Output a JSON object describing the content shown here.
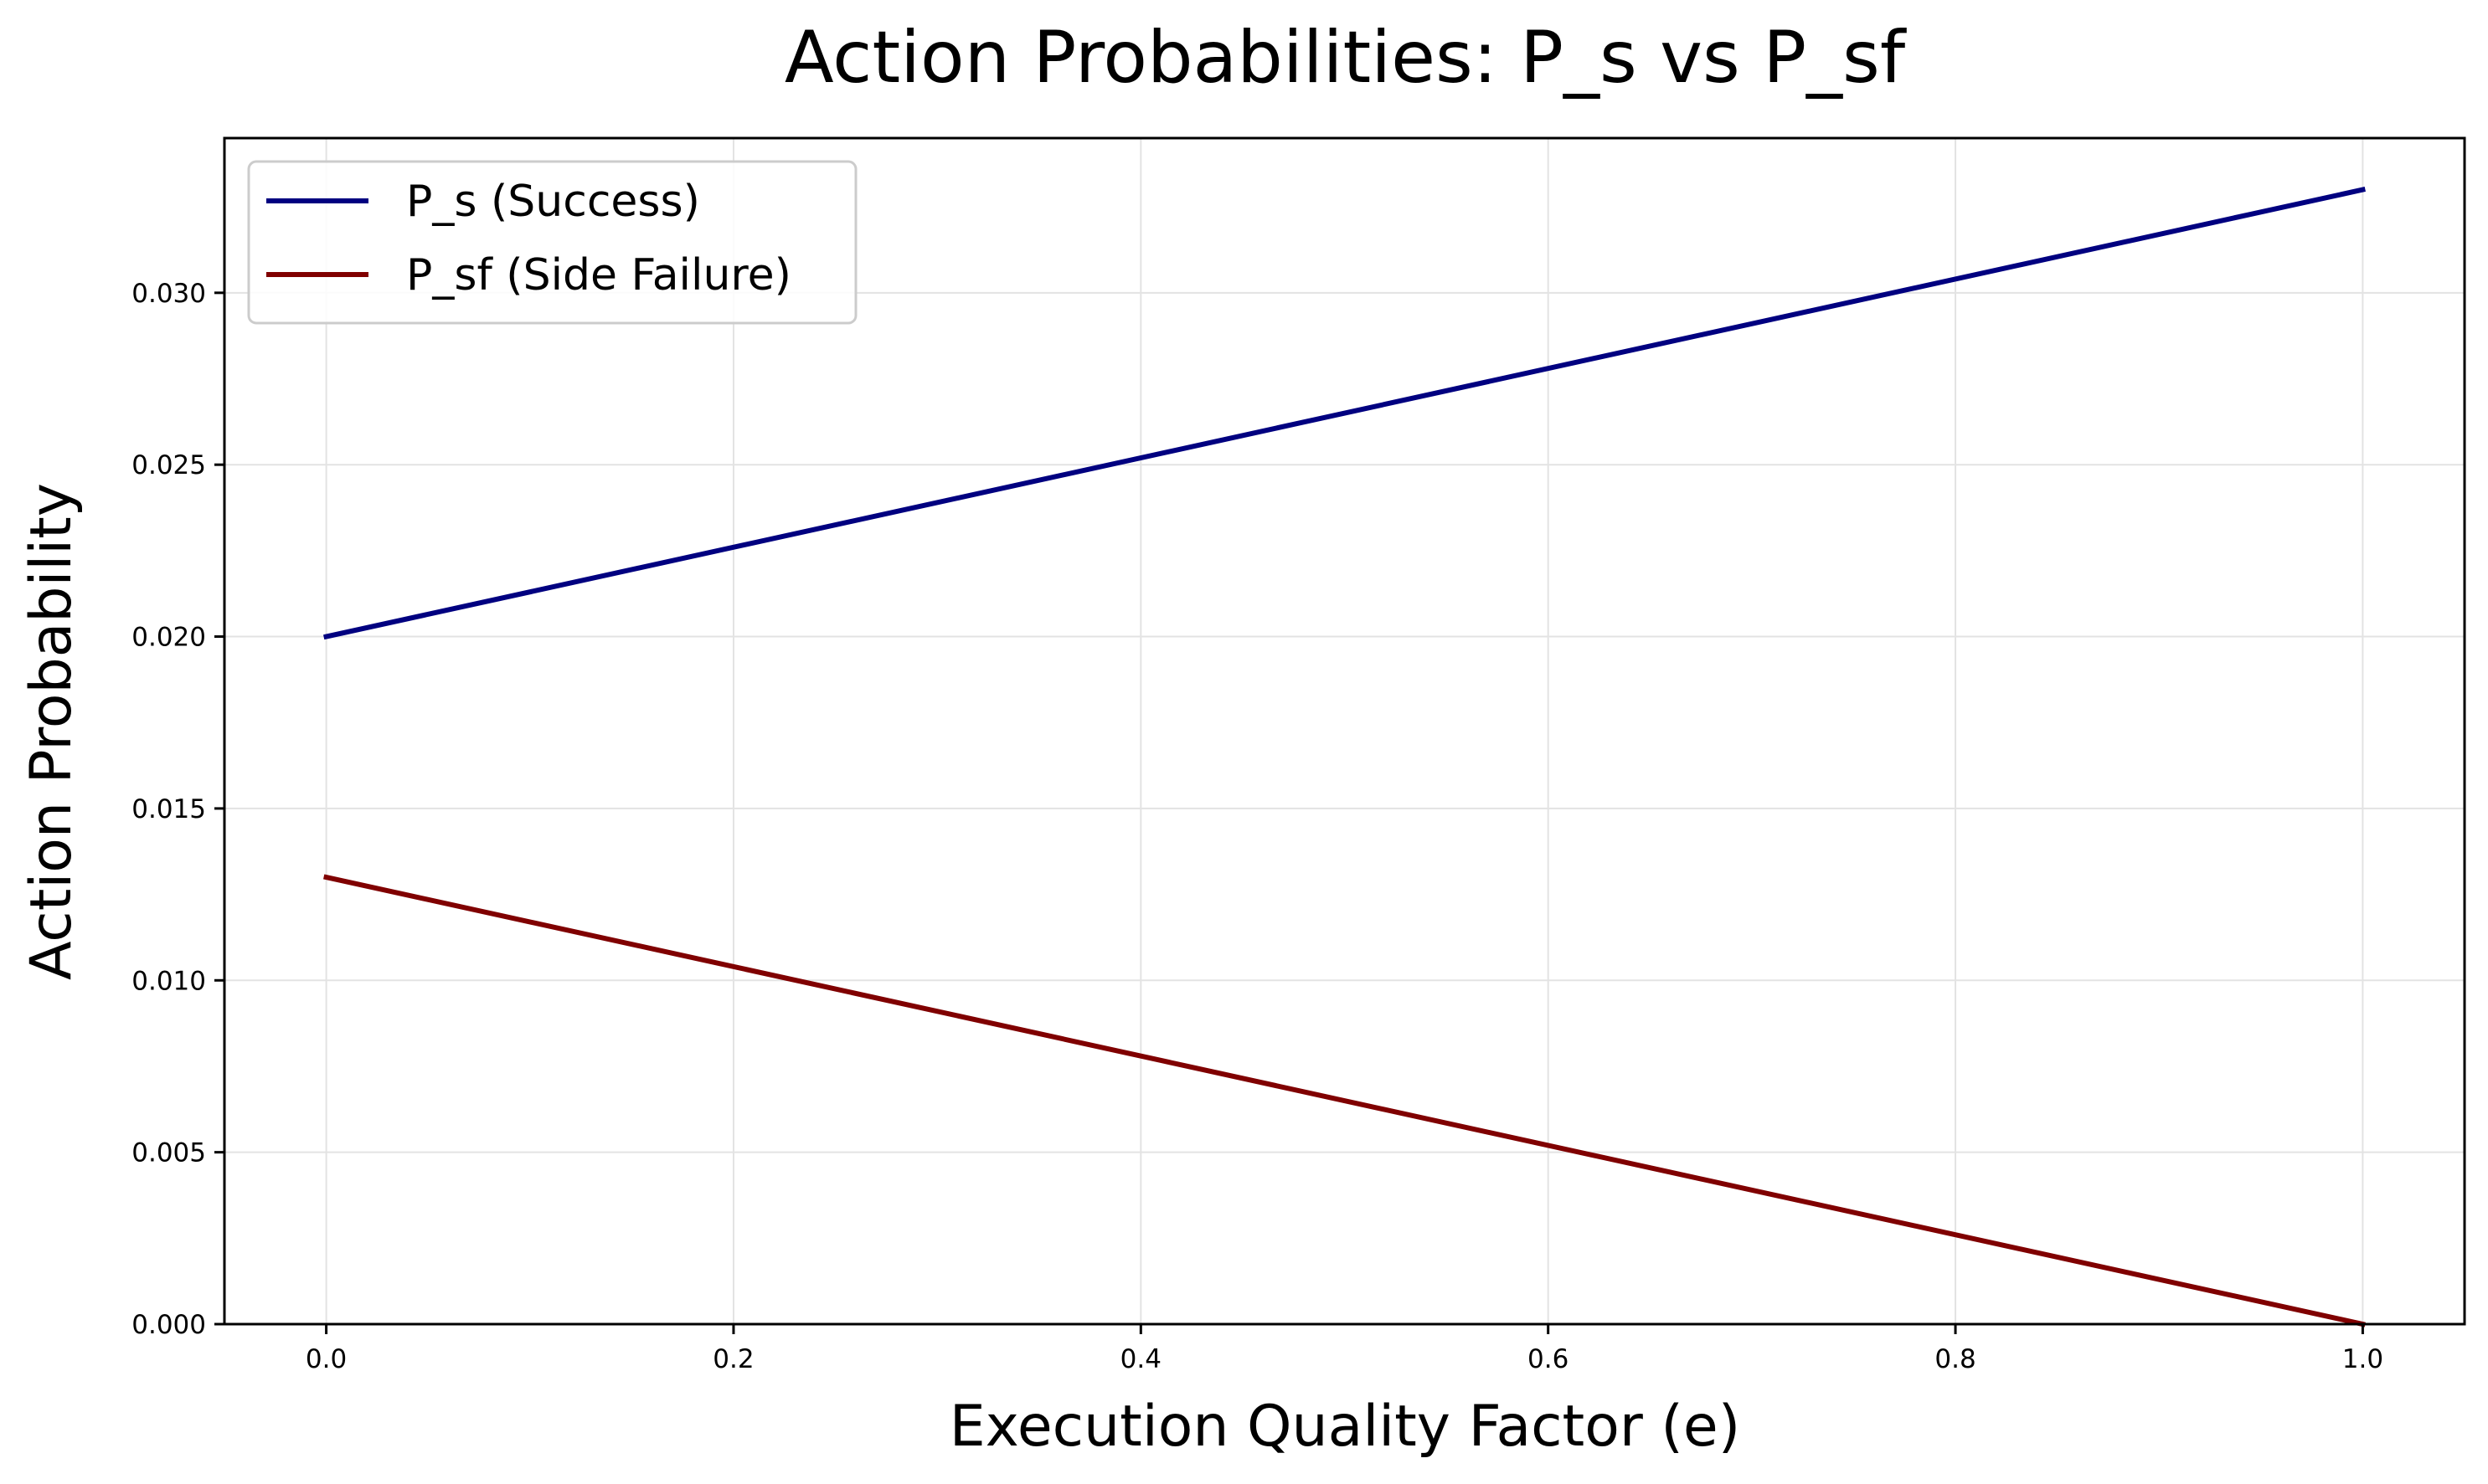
{
  "chart_data": {
    "type": "line",
    "title": "Action Probabilities: P_s vs P_sf",
    "xlabel": "Execution Quality Factor (e)",
    "ylabel": "Action Probability",
    "xlim": [
      -0.05,
      1.05
    ],
    "ylim": [
      0.0,
      0.0345
    ],
    "x_ticks": [
      0.0,
      0.2,
      0.4,
      0.6,
      0.8,
      1.0
    ],
    "x_tick_labels": [
      "0.0",
      "0.2",
      "0.4",
      "0.6",
      "0.8",
      "1.0"
    ],
    "y_ticks": [
      0.0,
      0.005,
      0.01,
      0.015,
      0.02,
      0.025,
      0.03
    ],
    "y_tick_labels": [
      "0.000",
      "0.005",
      "0.010",
      "0.015",
      "0.020",
      "0.025",
      "0.030"
    ],
    "grid": true,
    "legend_position": "top-left",
    "series": [
      {
        "name": "P_s (Success)",
        "color": "#000080",
        "x": [
          0.0,
          1.0
        ],
        "y": [
          0.02,
          0.033
        ]
      },
      {
        "name": "P_sf (Side Failure)",
        "color": "#800000",
        "x": [
          0.0,
          1.0
        ],
        "y": [
          0.013,
          0.0
        ]
      }
    ]
  }
}
